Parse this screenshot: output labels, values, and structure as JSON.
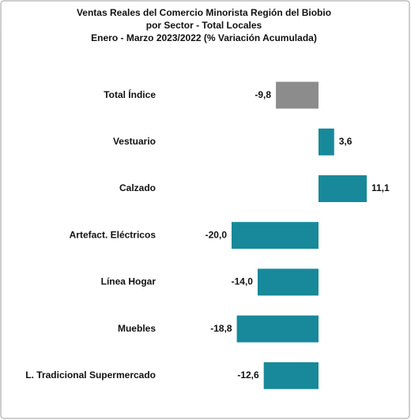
{
  "chart_data": {
    "type": "hbar",
    "title": [
      "Ventas Reales del Comercio Minorista Región del Biobio",
      "por Sector - Total Locales",
      "Enero - Marzo 2023/2022  (% Variación Acumulada)"
    ],
    "categories": [
      "Total Índice",
      "Vestuario",
      "Calzado",
      "Artefact. Eléctricos",
      "Línea Hogar",
      "Muebles",
      "L. Tradicional Supermercado"
    ],
    "values": [
      -9.8,
      3.6,
      11.1,
      -20.0,
      -14.0,
      -18.8,
      -12.6
    ],
    "value_labels": [
      "-9,8",
      "3,6",
      "11,1",
      "-20,0",
      "-14,0",
      "-18,8",
      "-12,6"
    ],
    "colors": [
      "#8c8c8c",
      "#17899a",
      "#17899a",
      "#17899a",
      "#17899a",
      "#17899a",
      "#17899a"
    ]
  }
}
